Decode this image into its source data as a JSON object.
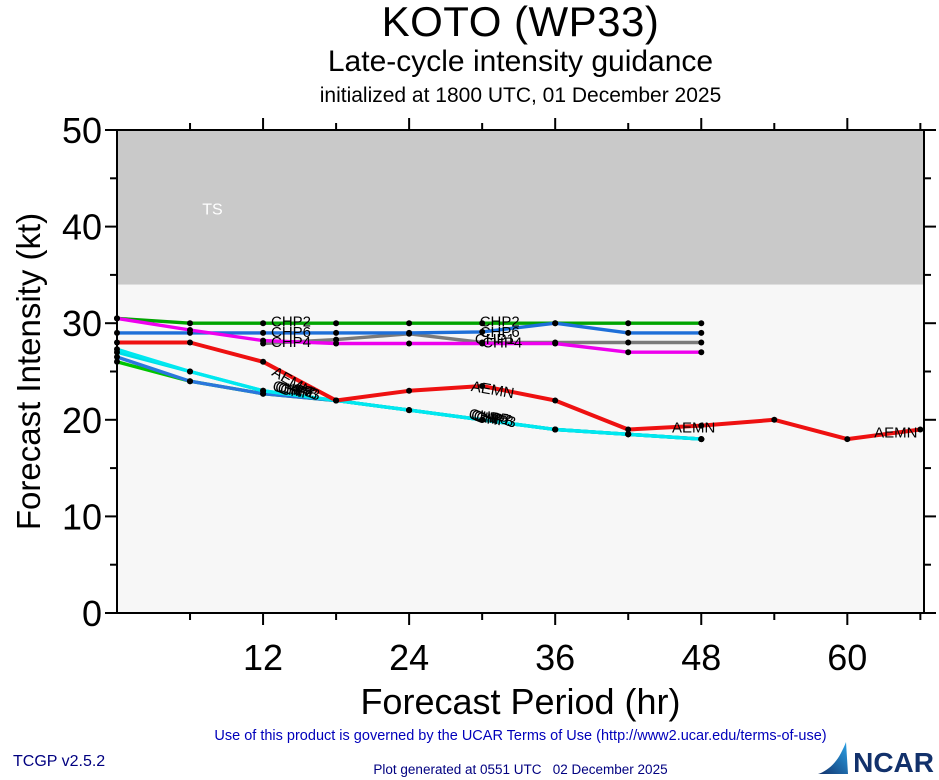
{
  "header": {
    "title": "KOTO (WP33)",
    "subtitle": "Late-cycle intensity guidance",
    "init_line": "initialized at 1800 UTC, 01 December 2025"
  },
  "footer": {
    "terms": "Use of this product is governed by the UCAR Terms of Use (http://www2.ucar.edu/terms-of-use)",
    "version": "TCGP v2.5.2",
    "generated": "Plot generated at 0551 UTC   02 December 2025",
    "logo_text": "NCAR"
  },
  "colors": {
    "terms_text": "#0000bb",
    "footer_text": "#000080",
    "ncar_navy": "#12316b",
    "ncar_swoosh": "#1e88d2",
    "band_gray": "#c9c9c9",
    "plot_bg": "#f7f7f7"
  },
  "chart_data": {
    "type": "line",
    "title": "KOTO (WP33) Late-cycle intensity guidance",
    "xlabel": "Forecast Period (hr)",
    "ylabel": "Forecast Intensity (kt)",
    "xlim": [
      0,
      66.3
    ],
    "ylim": [
      0,
      50
    ],
    "xticks": [
      12,
      24,
      36,
      48,
      60
    ],
    "xminor": [
      6,
      18,
      30,
      42,
      54,
      66
    ],
    "yticks": [
      0,
      10,
      20,
      30,
      40,
      50
    ],
    "yminor": [
      5,
      15,
      25,
      35,
      45
    ],
    "grid": false,
    "legend_position": "inline-labels",
    "plot_bg": "#f7f7f7",
    "band": {
      "label": "TS",
      "from": 34,
      "to": 50,
      "color": "#c9c9c9",
      "label_color": "#ffffff",
      "label_t": 7.0,
      "label_v": 41.7
    },
    "series": [
      {
        "name": "CHP3",
        "color": "#00c400",
        "x": [
          0,
          6,
          12,
          18,
          24,
          30,
          36,
          42,
          48
        ],
        "values": [
          26,
          24,
          22.7,
          22,
          21,
          20,
          19,
          18.5,
          18
        ]
      },
      {
        "name": "CHP5",
        "color": "#2a76dd",
        "x": [
          0,
          6,
          12,
          18,
          24,
          30,
          36,
          42,
          48
        ],
        "values": [
          26.5,
          24,
          22.7,
          22,
          21,
          20,
          19,
          18.5,
          18
        ]
      },
      {
        "name": "CHP7",
        "color": "#00dde6",
        "x": [
          0,
          6,
          12,
          18,
          24,
          30,
          36,
          42,
          48
        ],
        "values": [
          27,
          25,
          23,
          22,
          21,
          20,
          19,
          18.5,
          18
        ]
      },
      {
        "name": "CHP8",
        "color": "#00e8f0",
        "x": [
          0,
          6,
          12,
          18,
          24,
          30,
          36,
          42,
          48
        ],
        "values": [
          27.3,
          25,
          23,
          22,
          21,
          20,
          19,
          18.5,
          18
        ]
      },
      {
        "name": "CHP1",
        "color": "#7a7a7a",
        "x": [
          12,
          18,
          24,
          30,
          36,
          42,
          48
        ],
        "values": [
          27.9,
          28.3,
          28.9,
          28,
          28,
          28,
          28
        ]
      },
      {
        "name": "CHP2",
        "color": "#00a400",
        "x": [
          0,
          6,
          12,
          18,
          24,
          30,
          36,
          42,
          48
        ],
        "values": [
          30.5,
          30,
          30,
          30,
          30,
          30,
          30,
          30,
          30
        ]
      },
      {
        "name": "CHP6",
        "color": "#1e6fd8",
        "x": [
          0,
          6,
          12,
          18,
          24,
          30,
          36,
          42,
          48
        ],
        "values": [
          29,
          29,
          29,
          29,
          29,
          29.1,
          30,
          29,
          29
        ]
      },
      {
        "name": "CHP4",
        "color": "#ee00ee",
        "x": [
          0,
          6,
          12,
          18,
          24,
          30,
          36,
          42,
          48
        ],
        "values": [
          30.5,
          29.3,
          28.2,
          27.9,
          27.9,
          27.9,
          27.9,
          27,
          27
        ]
      },
      {
        "name": "AEMN",
        "color": "#ee1111",
        "x": [
          0,
          6,
          12,
          18,
          24,
          30,
          36,
          42,
          48,
          54,
          60,
          66
        ],
        "values": [
          28,
          28,
          26,
          22,
          23,
          23.5,
          22,
          19,
          19.4,
          20,
          18,
          19
        ]
      }
    ],
    "annotations": [
      {
        "text": "TS",
        "t": 7.0,
        "v": 41.7,
        "color": "#ffffff",
        "size": 16
      },
      {
        "text": "CHP2",
        "t": 12.65,
        "v": 30.05
      },
      {
        "text": "CHP6",
        "t": 12.65,
        "v": 29.0
      },
      {
        "text": "CHP4",
        "t": 12.65,
        "v": 27.95
      },
      {
        "text": "AEMN",
        "t": 12.8,
        "v": 25.0,
        "rot": 30
      },
      {
        "text": "CHP5",
        "t": 12.8,
        "v": 23.4,
        "rot": 9
      },
      {
        "text": "CHP7",
        "t": 13.0,
        "v": 23.3,
        "rot": 9
      },
      {
        "text": "CHP8",
        "t": 13.2,
        "v": 23.2,
        "rot": 9
      },
      {
        "text": "CHP3",
        "t": 13.4,
        "v": 23.1,
        "rot": 9
      },
      {
        "text": "CHP2",
        "t": 29.8,
        "v": 30.05
      },
      {
        "text": "CHP6",
        "t": 29.8,
        "v": 29.0
      },
      {
        "text": "CHP1",
        "t": 29.4,
        "v": 28.25
      },
      {
        "text": "CHP4",
        "t": 30.0,
        "v": 27.9
      },
      {
        "text": "AEMN",
        "t": 29.1,
        "v": 23.4,
        "rot": 10
      },
      {
        "text": "CHP5",
        "t": 28.9,
        "v": 20.5,
        "rot": 8
      },
      {
        "text": "CHP7",
        "t": 29.1,
        "v": 20.4,
        "rot": 8
      },
      {
        "text": "CHP8",
        "t": 29.3,
        "v": 20.3,
        "rot": 8
      },
      {
        "text": "CHP3",
        "t": 29.5,
        "v": 20.2,
        "rot": 8
      },
      {
        "text": "AEMN",
        "t": 45.6,
        "v": 19.1
      },
      {
        "text": "AEMN",
        "t": 62.2,
        "v": 18.6
      }
    ]
  }
}
